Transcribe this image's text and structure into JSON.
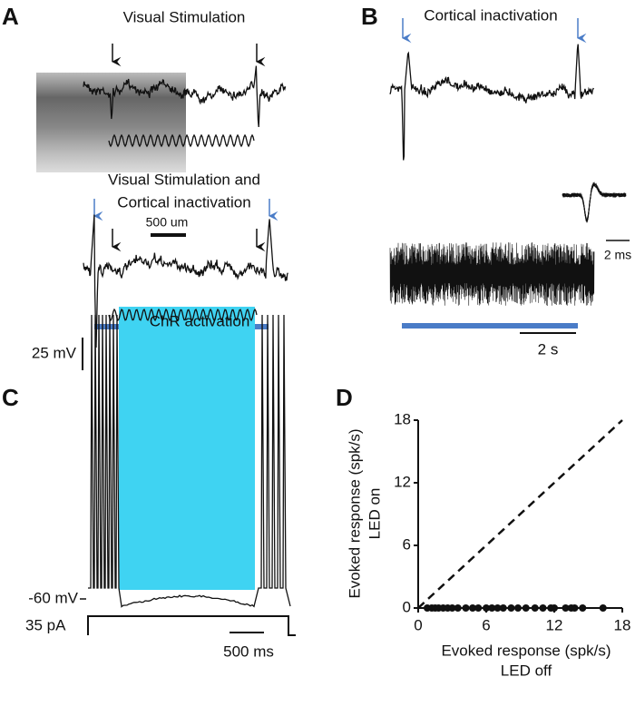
{
  "panels": {
    "A": {
      "label": "A",
      "title": "Visual Stimulation",
      "title2": [
        "Visual Stimulation and",
        "Cortical inactivation"
      ]
    },
    "B": {
      "label": "B",
      "title": "Cortical inactivation",
      "inset_scale": "2 ms",
      "time_scale": "2 s"
    },
    "C": {
      "label": "C",
      "image_scale": "500 um",
      "voltage_scale": "25 mV",
      "baseline_label": "-60 mV",
      "stim_label": "ChR activation",
      "current_label": "35 pA",
      "time_scale": "500 ms"
    },
    "D": {
      "label": "D"
    }
  },
  "chart_data": {
    "type": "scatter",
    "xlabel": [
      "Evoked response (spk/s)",
      "LED off"
    ],
    "ylabel": [
      "Evoked response (spk/s)",
      "LED on"
    ],
    "x": [
      0.8,
      1.2,
      1.5,
      1.8,
      2.2,
      2.6,
      3.0,
      3.5,
      4.2,
      4.8,
      5.3,
      6.0,
      6.5,
      7.0,
      7.5,
      8.2,
      8.8,
      9.5,
      10.3,
      11.0,
      11.7,
      12.0,
      13.0,
      13.5,
      13.8,
      14.5,
      16.3
    ],
    "values": [
      0,
      0,
      0,
      0,
      0,
      0,
      0,
      0,
      0,
      0,
      0,
      0,
      0,
      0,
      0,
      0,
      0,
      0,
      0,
      0,
      0,
      0,
      0,
      0,
      0,
      0,
      0
    ],
    "color": "#111111",
    "xlim": [
      0,
      18
    ],
    "ylim": [
      0,
      18
    ],
    "xticks": [
      0,
      6,
      12,
      18
    ],
    "yticks": [
      0,
      6,
      12,
      18
    ],
    "unity_line": true
  }
}
